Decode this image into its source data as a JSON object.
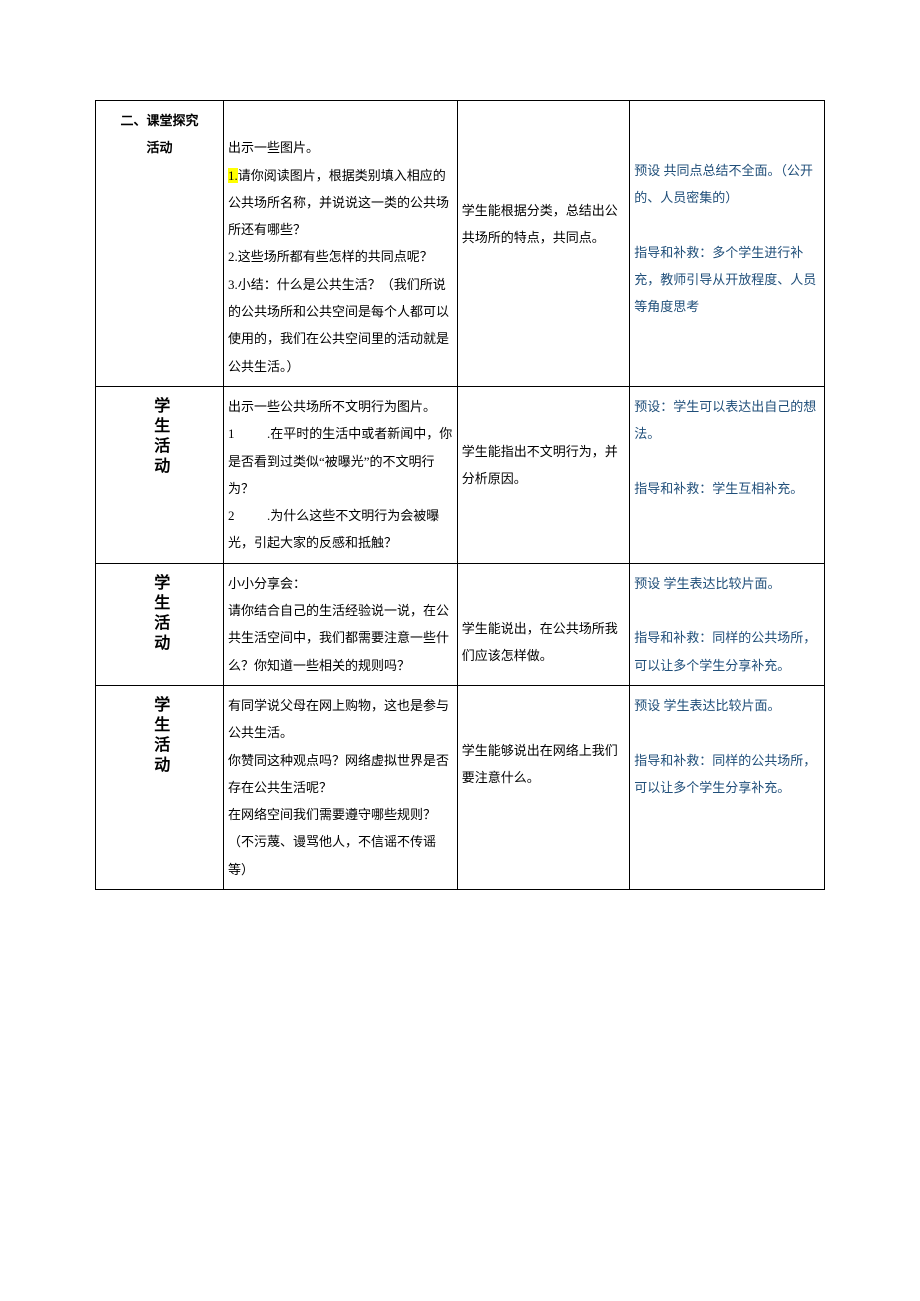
{
  "table": {
    "rows": [
      {
        "col1_lines": [
          "二、课堂探究",
          "活动"
        ],
        "col1_vertical": false,
        "col2": "出示一些图片。\n1.请你阅读图片，根据类别填入相应的公共场所名称，并说说这一类的公共场所还有哪些？\n2.这些场所都有些怎样的共同点呢？\n3.小结：什么是公共生活？（我们所说的公共场所和公共空间是每个人都可以使用的，我们在公共空间里的活动就是公共生活。）",
        "col2_highlight": "1.",
        "col3": "学生能根据分类，总结出公共场所的特点，共同点。",
        "col4_preset": "预设 共同点总结不全面。（公开的、人员密集的）",
        "col4_guide": "指导和补救：多个学生进行补充，教师引导从开放程度、人员等角度思考"
      },
      {
        "col1_vertical": true,
        "col1_vtext": "学生活动",
        "col2": "出示一些公共场所不文明行为图片。\n1          .在平时的生活中或者新闻中，你是否看到过类似“被曝光”的不文明行为？\n2          .为什么这些不文明行为会被曝光，引起大家的反感和抵触？",
        "col3": "学生能指出不文明行为，并分析原因。",
        "col4_preset": "预设：学生可以表达出自己的想法。",
        "col4_guide": "指导和补救：学生互相补充。"
      },
      {
        "col1_vertical": true,
        "col1_vtext": "学生活动",
        "col2": "小小分享会：\n请你结合自己的生活经验说一说，在公共生活空间中，我们都需要注意一些什么？你知道一些相关的规则吗？",
        "col3": "学生能说出，在公共场所我们应该怎样做。",
        "col4_preset": "预设 学生表达比较片面。",
        "col4_guide": "指导和补救：同样的公共场所，可以让多个学生分享补充。"
      },
      {
        "col1_vertical": true,
        "col1_vtext": "学生活动",
        "col2": "有同学说父母在网上购物，这也是参与公共生活。\n你赞同这种观点吗？网络虚拟世界是否存在公共生活呢？\n在网络空间我们需要遵守哪些规则？（不污蔑、谩骂他人，不信谣不传谣等）",
        "col3": "学生能够说出在网络上我们要注意什么。",
        "col4_preset": "预设 学生表达比较片面。",
        "col4_guide": "指导和补救：同样的公共场所，可以让多个学生分享补充。"
      }
    ]
  },
  "styles": {
    "text_color": "#000000",
    "accent_color": "#1f4e79",
    "highlight_color": "#ffff00",
    "border_color": "#000000",
    "font_size": 13,
    "line_height": 2.1
  }
}
